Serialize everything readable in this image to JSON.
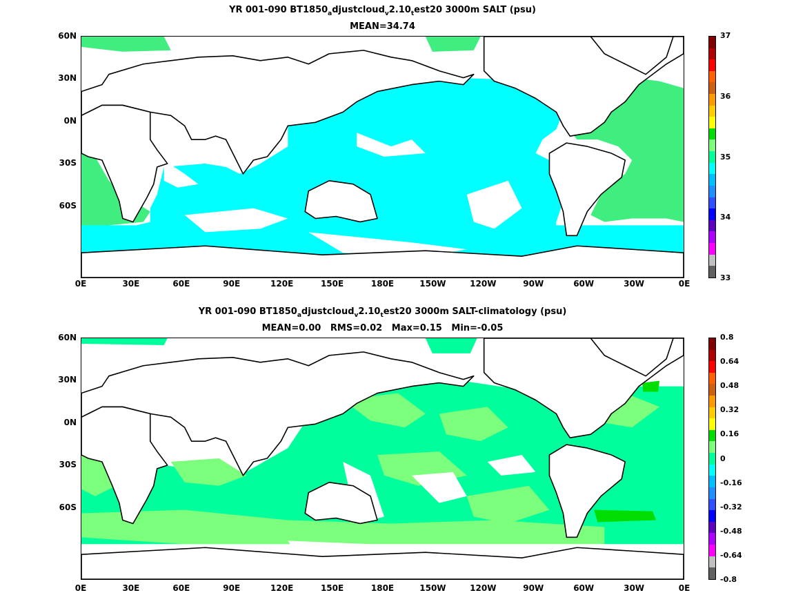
{
  "panel_top": {
    "title_prefix": "YR 001-090 BT1850",
    "title_sub1": "a",
    "title_mid1": "djustcloud",
    "title_sub2": "v",
    "title_mid2": "2.10",
    "title_sub3": "t",
    "title_suffix": "est20 3000m SALT (psu)",
    "subtitle": "MEAN=34.74",
    "colorbar_labels": [
      "37",
      "36",
      "35",
      "34",
      "33"
    ],
    "colorbar_colors": [
      "#800000",
      "#b00000",
      "#ff0000",
      "#ff6000",
      "#d06010",
      "#ff9900",
      "#ffcc00",
      "#ffff00",
      "#00dd00",
      "#7cff7c",
      "#00ff9c",
      "#00ffff",
      "#00bfff",
      "#1e90ff",
      "#3050ff",
      "#0000ff",
      "#6000c0",
      "#b000ff",
      "#ff00ff",
      "#c0c0c0",
      "#606060"
    ],
    "mean_fill": "#00ffff",
    "atlantic_fill": "#40ee80"
  },
  "panel_bottom": {
    "title_prefix": "YR 001-090 BT1850",
    "title_sub1": "a",
    "title_mid1": "djustcloud",
    "title_sub2": "v",
    "title_mid2": "2.10",
    "title_sub3": "t",
    "title_suffix": "est20 3000m SALT-climatology (psu)",
    "subtitle": "MEAN=0.00   RMS=0.02   Max=0.15   Min=-0.05",
    "colorbar_labels": [
      "0.8",
      "0.64",
      "0.48",
      "0.32",
      "0.16",
      "0",
      "-0.16",
      "-0.32",
      "-0.48",
      "-0.64",
      "-0.8"
    ],
    "colorbar_colors": [
      "#800000",
      "#b00000",
      "#ff0000",
      "#ff6000",
      "#d06010",
      "#ff9900",
      "#ffcc00",
      "#ffff00",
      "#00dd00",
      "#7cff7c",
      "#00ff9c",
      "#00ffff",
      "#00bfff",
      "#1e90ff",
      "#3050ff",
      "#0000ff",
      "#6000c0",
      "#b000ff",
      "#ff00ff",
      "#c0c0c0",
      "#606060"
    ],
    "base_fill": "#00ff9c",
    "patch_fill": "#7cff7c"
  },
  "axes": {
    "lat_labels": [
      "60N",
      "30N",
      "0N",
      "30S",
      "60S"
    ],
    "lon_labels": [
      "0E",
      "30E",
      "60E",
      "90E",
      "120E",
      "150E",
      "180E",
      "150W",
      "120W",
      "90W",
      "60W",
      "30W",
      "0E"
    ]
  }
}
